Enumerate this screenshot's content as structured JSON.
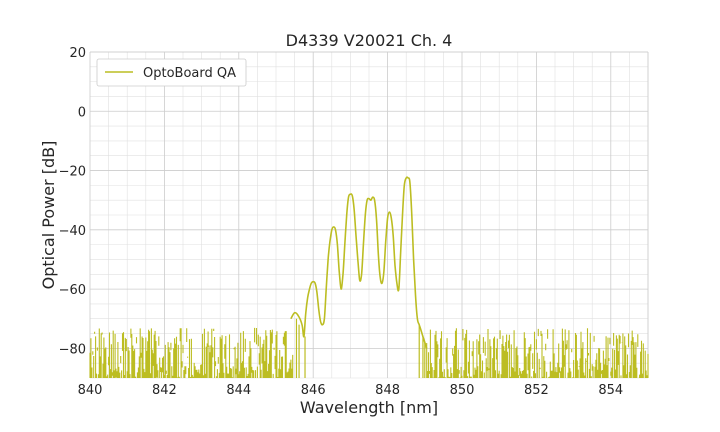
{
  "chart_data": {
    "type": "line",
    "title": "D4339 V20021 Ch. 4",
    "xlabel": "Wavelength [nm]",
    "ylabel": "Optical Power [dB]",
    "xlim": [
      840,
      855
    ],
    "ylim": [
      -90,
      20
    ],
    "xticks": [
      "840",
      "842",
      "844",
      "846",
      "848",
      "850",
      "852",
      "854"
    ],
    "yticks": [
      "20",
      "0",
      "−20",
      "−40",
      "−60",
      "−80"
    ],
    "grid": true,
    "legend": "top-left",
    "series": [
      {
        "name": "OptoBoard QA",
        "color": "#bcbd22",
        "noise_floor": {
          "x_ranges": [
            [
              840.0,
              845.45
            ],
            [
              849.05,
              855.0
            ]
          ],
          "y_range": [
            -90,
            -73
          ]
        },
        "x": [
          845.4,
          845.5,
          845.6,
          845.7,
          845.75,
          845.8,
          845.85,
          845.9,
          845.95,
          846.0,
          846.05,
          846.1,
          846.15,
          846.2,
          846.25,
          846.3,
          846.35,
          846.4,
          846.45,
          846.5,
          846.55,
          846.6,
          846.65,
          846.7,
          846.75,
          846.8,
          846.85,
          846.9,
          846.95,
          847.0,
          847.05,
          847.1,
          847.15,
          847.2,
          847.25,
          847.3,
          847.35,
          847.4,
          847.45,
          847.5,
          847.55,
          847.6,
          847.65,
          847.7,
          847.75,
          847.8,
          847.85,
          847.9,
          847.95,
          848.0,
          848.05,
          848.1,
          848.15,
          848.2,
          848.25,
          848.3,
          848.35,
          848.4,
          848.45,
          848.5,
          848.55,
          848.6,
          848.65,
          848.7,
          848.75,
          848.8,
          848.85,
          848.9,
          848.95,
          849.0,
          849.05
        ],
        "y": [
          -70,
          -68,
          -69,
          -72,
          -76,
          -68,
          -63,
          -60,
          -58,
          -57.5,
          -58,
          -61,
          -67,
          -71,
          -72,
          -70,
          -60,
          -50,
          -44,
          -40,
          -39,
          -40,
          -45,
          -54,
          -60,
          -55,
          -45,
          -35,
          -29,
          -28,
          -28.5,
          -33,
          -42,
          -50,
          -57,
          -55,
          -45,
          -35,
          -30,
          -29.5,
          -30,
          -29,
          -30,
          -36,
          -48,
          -56,
          -58,
          -54,
          -44,
          -36,
          -34,
          -36,
          -42,
          -52,
          -58,
          -60,
          -48,
          -35,
          -25,
          -22.5,
          -22.5,
          -24,
          -35,
          -50,
          -62,
          -70,
          -72,
          -74,
          -76,
          -78,
          -80
        ]
      }
    ]
  }
}
